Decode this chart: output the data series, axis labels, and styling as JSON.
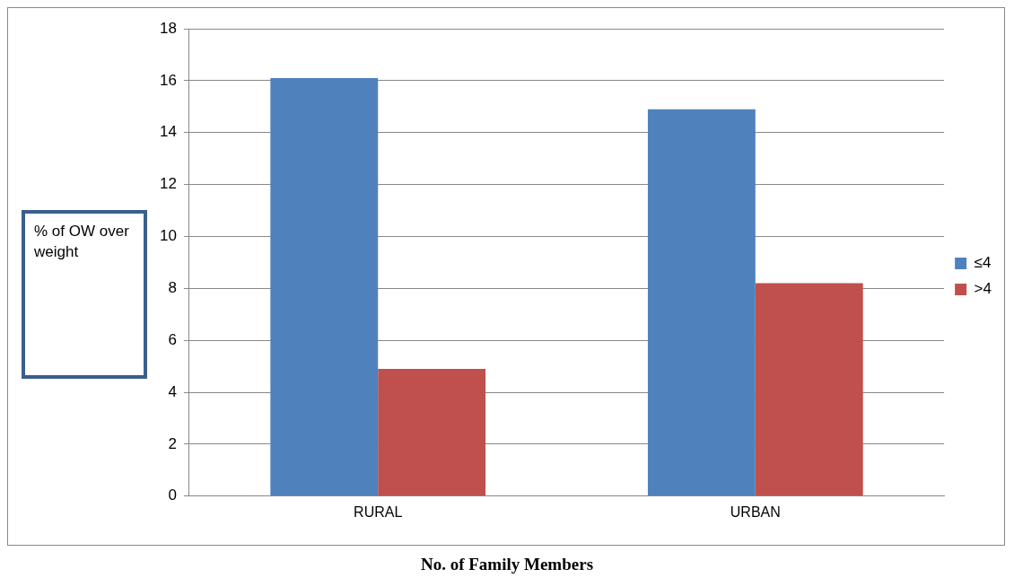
{
  "chart_data": {
    "type": "bar",
    "xlabel": "No. of Family Members",
    "ylabel": "% of OW over weight",
    "categories": [
      "RURAL",
      "URBAN"
    ],
    "series": [
      {
        "name": "≤4",
        "color": "#4f81bd",
        "values": [
          16.1,
          14.9
        ]
      },
      {
        "name": ">4",
        "color": "#c0504d",
        "values": [
          4.9,
          8.2
        ]
      }
    ],
    "ylim": [
      0,
      18
    ],
    "yticks": [
      0,
      2,
      4,
      6,
      8,
      10,
      12,
      14,
      16,
      18
    ],
    "grid": "y",
    "legend": "right"
  }
}
